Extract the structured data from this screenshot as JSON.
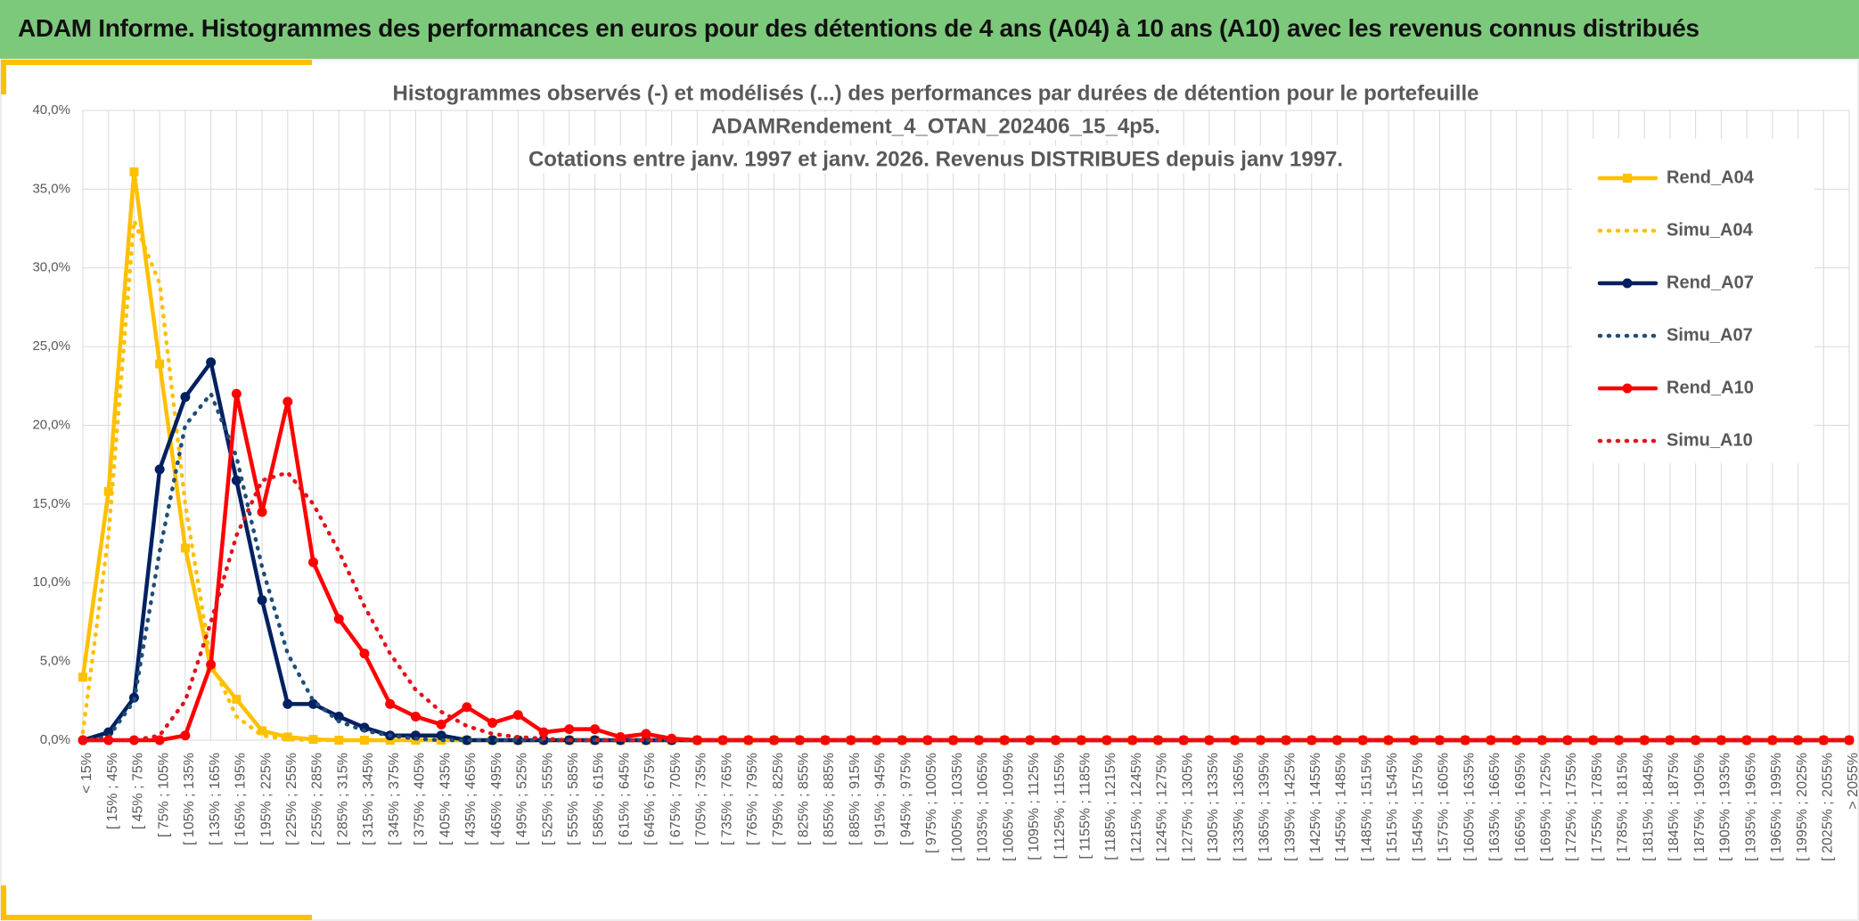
{
  "header": {
    "title": "ADAM Informe. Histogrammes des performances en euros pour des détentions de 4 ans (A04) à 10 ans (A10) avec les revenus connus distribués"
  },
  "chart_data": {
    "type": "line",
    "title": [
      "Histogrammes observés (-) et modélisés (...) des performances par durées de détention pour le portefeuille",
      "ADAMRendement_4_OTAN_202406_15_4p5.",
      "Cotations entre janv. 1997 et janv. 2026. Revenus DISTRIBUES depuis janv 1997."
    ],
    "categories": [
      "< 15%",
      "[ 15% ; 45%",
      "[ 45% ; 75%",
      "[ 75% ; 105%",
      "[ 105% ; 135%",
      "[ 135% ; 165%",
      "[ 165% ; 195%",
      "[ 195% ; 225%",
      "[ 225% ; 255%",
      "[ 255% ; 285%",
      "[ 285% ; 315%",
      "[ 315% ; 345%",
      "[ 345% ; 375%",
      "[ 375% ; 405%",
      "[ 405% ; 435%",
      "[ 435% ; 465%",
      "[ 465% ; 495%",
      "[ 495% ; 525%",
      "[ 525% ; 555%",
      "[ 555% ; 585%",
      "[ 585% ; 615%",
      "[ 615% ; 645%",
      "[ 645% ; 675%",
      "[ 675% ; 705%",
      "[ 705% ; 735%",
      "[ 735% ; 765%",
      "[ 765% ; 795%",
      "[ 795% ; 825%",
      "[ 825% ; 855%",
      "[ 855% ; 885%",
      "[ 885% ; 915%",
      "[ 915% ; 945%",
      "[ 945% ; 975%",
      "[ 975% ; 1005%",
      "[ 1005% ; 1035%",
      "[ 1035% ; 1065%",
      "[ 1065% ; 1095%",
      "[ 1095% ; 1125%",
      "[ 1125% ; 1155%",
      "[ 1155% ; 1185%",
      "[ 1185% ; 1215%",
      "[ 1215% ; 1245%",
      "[ 1245% ; 1275%",
      "[ 1275% ; 1305%",
      "[ 1305% ; 1335%",
      "[ 1335% ; 1365%",
      "[ 1365% ; 1395%",
      "[ 1395% ; 1425%",
      "[ 1425% ; 1455%",
      "[ 1455% ; 1485%",
      "[ 1485% ; 1515%",
      "[ 1515% ; 1545%",
      "[ 1545% ; 1575%",
      "[ 1575% ; 1605%",
      "[ 1605% ; 1635%",
      "[ 1635% ; 1665%",
      "[ 1665% ; 1695%",
      "[ 1695% ; 1725%",
      "[ 1725% ; 1755%",
      "[ 1755% ; 1785%",
      "[ 1785% ; 1815%",
      "[ 1815% ; 1845%",
      "[ 1845% ; 1875%",
      "[ 1875% ; 1905%",
      "[ 1905% ; 1935%",
      "[ 1935% ; 1965%",
      "[ 1965% ; 1995%",
      "[ 1995% ; 2025%",
      "[ 2025% ; 2055%",
      "> 2055%"
    ],
    "series": [
      {
        "name": "Rend_A04",
        "color": "#ffc000",
        "dash": "solid",
        "marker": "square",
        "values": [
          4.0,
          15.8,
          36.1,
          23.9,
          12.2,
          4.6,
          2.6,
          0.6,
          0.2,
          0.05,
          0,
          0,
          0,
          0,
          0,
          0,
          0,
          0,
          0,
          0,
          0,
          0,
          0,
          0,
          0,
          0,
          0,
          0,
          0,
          0,
          0,
          0,
          0,
          0,
          0,
          0,
          0,
          0,
          0,
          0,
          0,
          0,
          0,
          0,
          0,
          0,
          0,
          0,
          0,
          0,
          0,
          0,
          0,
          0,
          0,
          0,
          0,
          0,
          0,
          0,
          0,
          0,
          0,
          0,
          0,
          0,
          0,
          0,
          0,
          0
        ]
      },
      {
        "name": "Simu_A04",
        "color": "#ffc000",
        "dash": "dotted",
        "marker": null,
        "values": [
          0.5,
          13,
          33,
          29,
          15,
          5,
          1.5,
          0.3,
          0.05,
          0,
          0,
          0,
          0,
          0,
          0,
          0,
          0,
          0,
          0,
          0,
          0,
          0,
          0,
          0,
          0,
          0,
          0,
          0,
          0,
          0,
          0,
          0,
          0,
          0,
          0,
          0,
          0,
          0,
          0,
          0,
          0,
          0,
          0,
          0,
          0,
          0,
          0,
          0,
          0,
          0,
          0,
          0,
          0,
          0,
          0,
          0,
          0,
          0,
          0,
          0,
          0,
          0,
          0,
          0,
          0,
          0,
          0,
          0,
          0,
          0
        ]
      },
      {
        "name": "Rend_A07",
        "color": "#002060",
        "dash": "solid",
        "marker": "circle",
        "values": [
          0,
          0.5,
          2.7,
          17.2,
          21.8,
          24.0,
          16.5,
          8.9,
          2.3,
          2.3,
          1.5,
          0.8,
          0.3,
          0.3,
          0.3,
          0,
          0,
          0,
          0,
          0,
          0,
          0,
          0,
          0,
          0,
          0,
          0,
          0,
          0,
          0,
          0,
          0,
          0,
          0,
          0,
          0,
          0,
          0,
          0,
          0,
          0,
          0,
          0,
          0,
          0,
          0,
          0,
          0,
          0,
          0,
          0,
          0,
          0,
          0,
          0,
          0,
          0,
          0,
          0,
          0,
          0,
          0,
          0,
          0,
          0,
          0,
          0,
          0,
          0,
          0
        ]
      },
      {
        "name": "Simu_A07",
        "color": "#1f4e79",
        "dash": "dotted",
        "marker": null,
        "values": [
          0,
          0.2,
          2.5,
          12,
          20,
          22,
          18,
          11,
          5.5,
          2.5,
          1.2,
          0.6,
          0.3,
          0.1,
          0,
          0,
          0,
          0,
          0,
          0,
          0,
          0,
          0,
          0,
          0,
          0,
          0,
          0,
          0,
          0,
          0,
          0,
          0,
          0,
          0,
          0,
          0,
          0,
          0,
          0,
          0,
          0,
          0,
          0,
          0,
          0,
          0,
          0,
          0,
          0,
          0,
          0,
          0,
          0,
          0,
          0,
          0,
          0,
          0,
          0,
          0,
          0,
          0,
          0,
          0,
          0,
          0,
          0,
          0,
          0
        ]
      },
      {
        "name": "Rend_A10",
        "color": "#ff0000",
        "dash": "solid",
        "marker": "circle",
        "values": [
          0,
          0,
          0,
          0,
          0.3,
          4.8,
          22,
          14.5,
          21.5,
          11.3,
          7.7,
          5.5,
          2.3,
          1.5,
          1.0,
          2.1,
          1.1,
          1.6,
          0.5,
          0.7,
          0.7,
          0.2,
          0.4,
          0.1,
          0,
          0,
          0,
          0,
          0,
          0,
          0,
          0,
          0,
          0,
          0,
          0,
          0,
          0,
          0,
          0,
          0,
          0,
          0,
          0,
          0,
          0,
          0,
          0,
          0,
          0,
          0,
          0,
          0,
          0,
          0,
          0,
          0,
          0,
          0,
          0,
          0,
          0,
          0,
          0,
          0,
          0,
          0,
          0,
          0,
          0
        ]
      },
      {
        "name": "Simu_A10",
        "color": "#e0141e",
        "dash": "dotted",
        "marker": null,
        "values": [
          0,
          0,
          0,
          0.3,
          2.5,
          7.5,
          13,
          16.5,
          17,
          15,
          12,
          8.5,
          5.5,
          3.2,
          1.8,
          0.9,
          0.4,
          0.2,
          0.1,
          0,
          0,
          0,
          0,
          0,
          0,
          0,
          0,
          0,
          0,
          0,
          0,
          0,
          0,
          0,
          0,
          0,
          0,
          0,
          0,
          0,
          0,
          0,
          0,
          0,
          0,
          0,
          0,
          0,
          0,
          0,
          0,
          0,
          0,
          0,
          0,
          0,
          0,
          0,
          0,
          0,
          0,
          0,
          0,
          0,
          0,
          0,
          0,
          0,
          0,
          0
        ]
      }
    ],
    "ylim": [
      0,
      40
    ],
    "yticks": [
      {
        "value": 0,
        "label": "0,0%"
      },
      {
        "value": 5,
        "label": "5,0%"
      },
      {
        "value": 10,
        "label": "10,0%"
      },
      {
        "value": 15,
        "label": "15,0%"
      },
      {
        "value": 20,
        "label": "20,0%"
      },
      {
        "value": 25,
        "label": "25,0%"
      },
      {
        "value": 30,
        "label": "30,0%"
      },
      {
        "value": 35,
        "label": "35,0%"
      },
      {
        "value": 40,
        "label": "40,0%"
      }
    ],
    "grid": true,
    "legend": "right"
  }
}
